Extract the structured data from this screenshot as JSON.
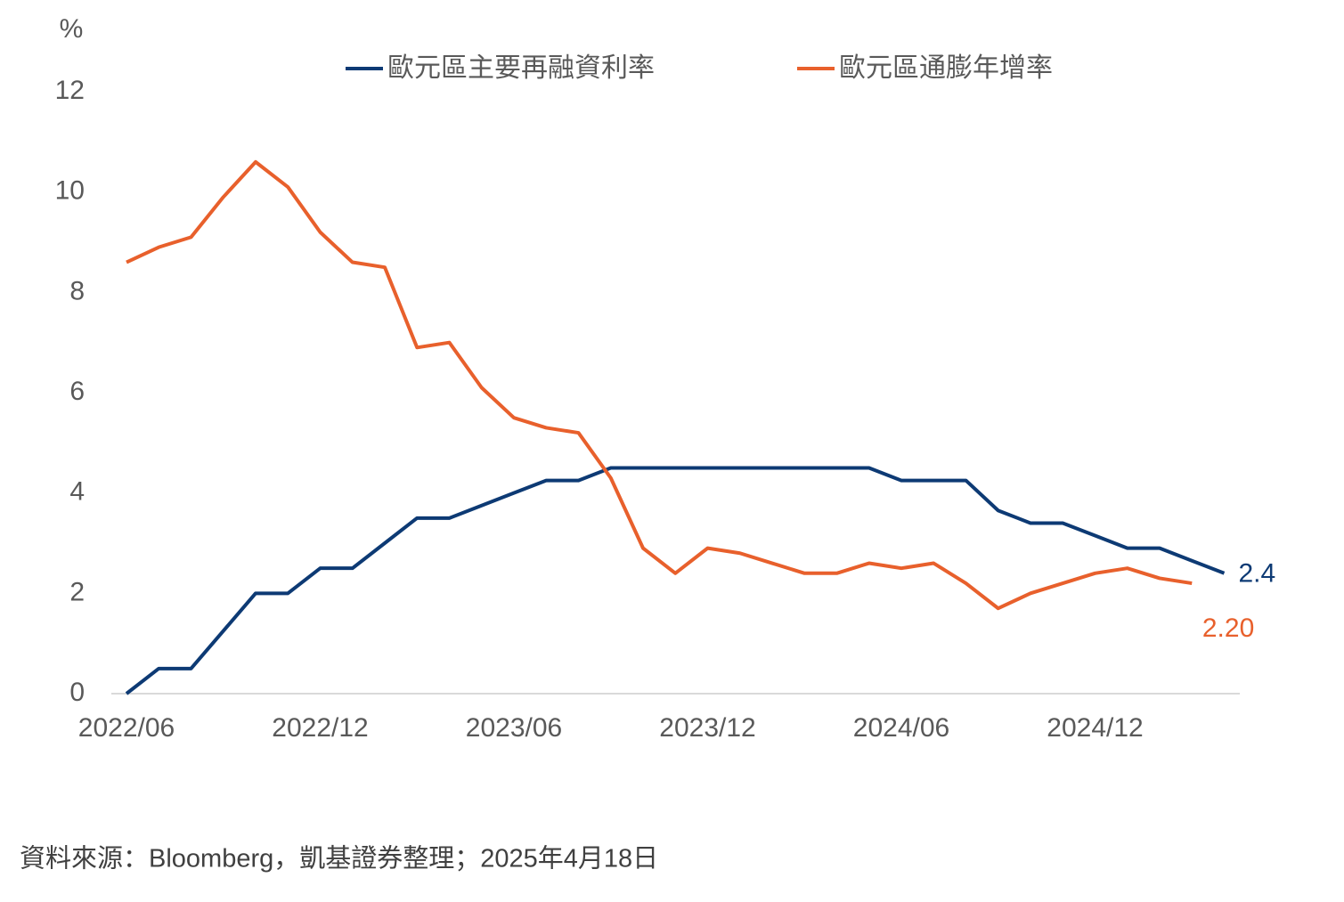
{
  "chart_data": {
    "type": "line",
    "ylabel": "%",
    "categories": [
      "2022/06",
      null,
      null,
      null,
      null,
      null,
      "2022/12",
      null,
      null,
      null,
      null,
      null,
      "2023/06",
      null,
      null,
      null,
      null,
      null,
      "2023/12",
      null,
      null,
      null,
      null,
      null,
      "2024/06",
      null,
      null,
      null,
      null,
      null,
      "2024/12",
      null,
      null,
      null,
      null
    ],
    "series": [
      {
        "name": "歐元區主要再融資利率",
        "color": "#0d3a74",
        "values": [
          0,
          0.5,
          0.5,
          1.25,
          2,
          2,
          2.5,
          2.5,
          3,
          3.5,
          3.5,
          3.75,
          4,
          4.25,
          4.25,
          4.5,
          4.5,
          4.5,
          4.5,
          4.5,
          4.5,
          4.5,
          4.5,
          4.5,
          4.25,
          4.25,
          4.25,
          3.65,
          3.4,
          3.4,
          3.15,
          2.9,
          2.9,
          2.65,
          2.4
        ],
        "value_labels": [
          null,
          null,
          null,
          null,
          null,
          null,
          null,
          null,
          null,
          null,
          null,
          null,
          null,
          null,
          null,
          null,
          null,
          null,
          null,
          null,
          null,
          null,
          null,
          null,
          null,
          null,
          null,
          null,
          null,
          null,
          null,
          null,
          null,
          null,
          "2.4"
        ]
      },
      {
        "name": "歐元區通膨年增率",
        "color": "#e8602c",
        "values": [
          8.6,
          8.9,
          9.1,
          9.9,
          10.6,
          10.1,
          9.2,
          8.6,
          8.5,
          6.9,
          7.0,
          6.1,
          5.5,
          5.3,
          5.2,
          4.3,
          2.9,
          2.4,
          2.9,
          2.8,
          2.6,
          2.4,
          2.4,
          2.6,
          2.5,
          2.6,
          2.2,
          1.7,
          2.0,
          2.2,
          2.4,
          2.5,
          2.3,
          2.2,
          null
        ],
        "value_labels": [
          null,
          null,
          null,
          null,
          null,
          null,
          null,
          null,
          null,
          null,
          null,
          null,
          null,
          null,
          null,
          null,
          null,
          null,
          null,
          null,
          null,
          null,
          null,
          null,
          null,
          null,
          null,
          null,
          null,
          null,
          null,
          null,
          null,
          "2.20",
          null
        ]
      }
    ],
    "ylim": [
      0,
      12
    ],
    "yticks": [
      0,
      2,
      4,
      6,
      8,
      10,
      12
    ],
    "grid": false,
    "source": "資料來源：Bloomberg，凱基證券整理；2025年4月18日"
  }
}
